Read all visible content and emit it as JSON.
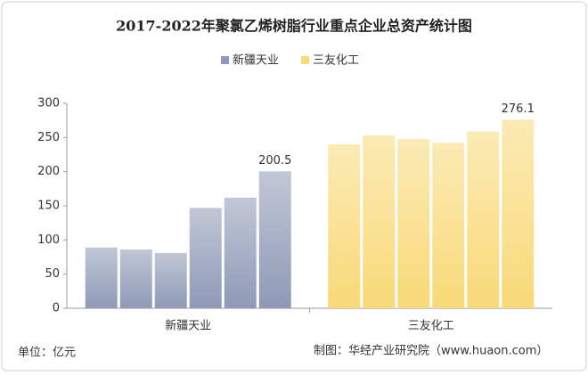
{
  "chart_data": {
    "type": "bar",
    "title": "2017-2022年聚氯乙烯树脂行业重点企业总资产统计图",
    "series": [
      {
        "name": "新疆天业",
        "color": "#8f99b6",
        "values": [
          89,
          86,
          81,
          147,
          162,
          200.5
        ],
        "value_labels": [
          null,
          null,
          null,
          null,
          null,
          "200.5"
        ]
      },
      {
        "name": "三友化工",
        "color": "#f8d978",
        "values": [
          240,
          253,
          248,
          242,
          259,
          276.1
        ],
        "value_labels": [
          null,
          null,
          null,
          null,
          null,
          "276.1"
        ]
      }
    ],
    "ylim": [
      0,
      300
    ],
    "yticks": [
      0,
      50,
      100,
      150,
      200,
      250,
      300
    ],
    "grid": false,
    "legend": "top",
    "unit_note": "单位：亿元",
    "source": "制图：华经产业研究院（www.huaon.com）"
  }
}
